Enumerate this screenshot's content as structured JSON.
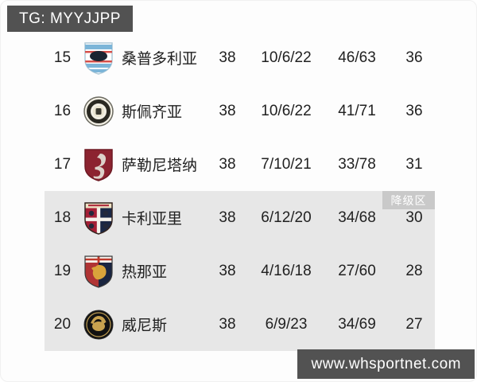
{
  "watermarks": {
    "telegram": "TG: MYYJJPP",
    "site": "www.whsportnet.com"
  },
  "table": {
    "relegation_label": "降级区",
    "columns": [
      "rank",
      "crest",
      "team",
      "played",
      "win/draw/loss",
      "goals for/against",
      "points"
    ],
    "rows": [
      {
        "rank": "15",
        "crest": "sampdoria",
        "team": "桑普多利亚",
        "played": "38",
        "record": "10/6/22",
        "goals": "46/63",
        "points": "36",
        "zone": "safe"
      },
      {
        "rank": "16",
        "crest": "spezia",
        "team": "斯佩齐亚",
        "played": "38",
        "record": "10/6/22",
        "goals": "41/71",
        "points": "36",
        "zone": "safe"
      },
      {
        "rank": "17",
        "crest": "salernitana",
        "team": "萨勒尼塔纳",
        "played": "38",
        "record": "7/10/21",
        "goals": "33/78",
        "points": "31",
        "zone": "safe"
      },
      {
        "rank": "18",
        "crest": "cagliari",
        "team": "卡利亚里",
        "played": "38",
        "record": "6/12/20",
        "goals": "34/68",
        "points": "30",
        "zone": "relegation"
      },
      {
        "rank": "19",
        "crest": "genoa",
        "team": "热那亚",
        "played": "38",
        "record": "4/16/18",
        "goals": "27/60",
        "points": "28",
        "zone": "relegation"
      },
      {
        "rank": "20",
        "crest": "venezia",
        "team": "威尼斯",
        "played": "38",
        "record": "6/9/23",
        "goals": "34/69",
        "points": "27",
        "zone": "relegation"
      }
    ]
  },
  "colors": {
    "text": "#212121",
    "page-bg": "#fdfdfd",
    "watermark-bg": "#525252",
    "relegation-bg": "#e7e7e7",
    "zone-badge-bg": "#c9c9c9"
  }
}
